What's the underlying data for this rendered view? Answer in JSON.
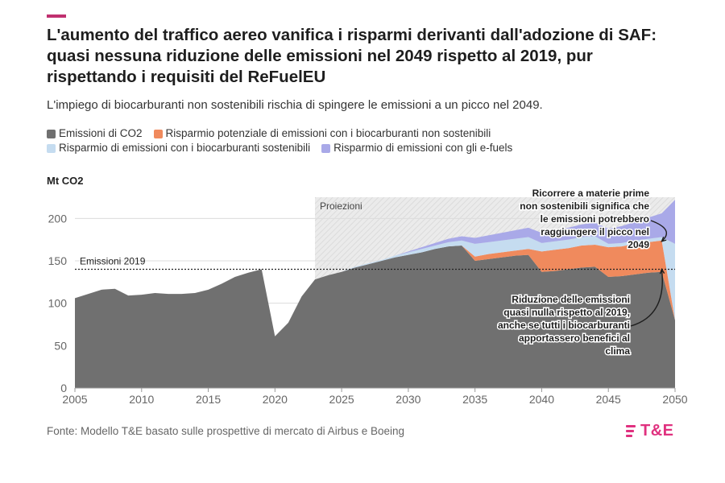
{
  "header": {
    "title": "L'aumento del traffico aereo vanifica i risparmi derivanti dall'adozione di SAF: quasi nessuna riduzione delle emissioni nel 2049 rispetto al 2019, pur rispettando i requisiti del ReFuelEU",
    "subtitle": "L'impiego di biocarburanti non sostenibili rischia di spingere le emissioni a un picco nel 2049.",
    "unit_label": "Mt CO2"
  },
  "footer": {
    "source": "Fonte: Modello T&E basato sulle prospettive di mercato di Airbus e Boeing",
    "logo_text": "T&E"
  },
  "colors": {
    "accent": "#c0306f",
    "co2": "#707070",
    "unsustainable": "#f08a5d",
    "sustainable": "#c5dcf0",
    "efuels": "#a9a9e8",
    "projection_bg": "#ebebeb",
    "logo": "#e0317f"
  },
  "chart_data": {
    "type": "area",
    "ylabel": "Mt CO2",
    "xlim": [
      2005,
      2050
    ],
    "ylim": [
      0,
      225
    ],
    "x_ticks": [
      "2005",
      "2010",
      "2015",
      "2020",
      "2025",
      "2030",
      "2035",
      "2040",
      "2045",
      "2050"
    ],
    "y_ticks": [
      "0",
      "50",
      "100",
      "150",
      "200"
    ],
    "grid": true,
    "legend_position": "top",
    "x": [
      2005,
      2006,
      2007,
      2008,
      2009,
      2010,
      2011,
      2012,
      2013,
      2014,
      2015,
      2016,
      2017,
      2018,
      2019,
      2020,
      2021,
      2022,
      2023,
      2024,
      2025,
      2026,
      2027,
      2028,
      2029,
      2030,
      2031,
      2032,
      2033,
      2034,
      2035,
      2036,
      2037,
      2038,
      2039,
      2040,
      2041,
      2042,
      2043,
      2044,
      2045,
      2046,
      2047,
      2048,
      2049,
      2050
    ],
    "series": [
      {
        "name": "Emissioni di CO2",
        "key": "co2",
        "values": [
          106,
          111,
          116,
          117,
          109,
          110,
          112,
          111,
          111,
          112,
          116,
          123,
          131,
          136,
          140,
          61,
          77,
          108,
          128,
          133,
          137,
          142,
          146,
          150,
          154,
          157,
          160,
          164,
          167,
          168,
          150,
          152,
          154,
          156,
          157,
          137,
          138,
          140,
          142,
          143,
          131,
          132,
          134,
          136,
          137,
          80
        ]
      },
      {
        "name": "Risparmio potenziale di emissioni con i biocarburanti non sostenibili",
        "key": "unsustainable",
        "values": [
          0,
          0,
          0,
          0,
          0,
          0,
          0,
          0,
          0,
          0,
          0,
          0,
          0,
          0,
          0,
          0,
          0,
          0,
          0,
          0,
          0,
          0,
          0,
          0,
          0,
          0,
          0,
          0,
          0,
          0,
          5,
          6,
          6,
          6,
          7,
          24,
          25,
          25,
          26,
          26,
          35,
          35,
          36,
          36,
          37,
          0
        ]
      },
      {
        "name": "Risparmio di emissioni con i biocarburanti sostenibili",
        "key": "sustainable",
        "values": [
          0,
          0,
          0,
          0,
          0,
          0,
          0,
          0,
          0,
          0,
          0,
          0,
          0,
          0,
          0,
          0,
          0,
          0,
          0,
          0,
          0,
          1,
          1,
          1,
          2,
          3,
          4,
          4,
          5,
          6,
          15,
          14,
          14,
          14,
          14,
          10,
          10,
          10,
          10,
          10,
          4,
          4,
          4,
          4,
          4,
          90
        ]
      },
      {
        "name": "Risparmio di emissioni con gli e-fuels",
        "key": "efuels",
        "values": [
          0,
          0,
          0,
          0,
          0,
          0,
          0,
          0,
          0,
          0,
          0,
          0,
          0,
          0,
          0,
          0,
          0,
          0,
          0,
          0,
          0,
          0,
          0,
          0,
          0,
          1,
          2,
          3,
          4,
          5,
          7,
          8,
          9,
          10,
          11,
          12,
          13,
          14,
          15,
          16,
          18,
          20,
          22,
          25,
          28,
          52
        ]
      }
    ],
    "reference_line": {
      "label": "Emissioni 2019",
      "value": 140
    },
    "projection": {
      "label": "Proiezioni",
      "from": 2023,
      "to": 2050
    },
    "annotations": [
      {
        "text": [
          "Ricorrere a materie prime",
          "non sostenibili significa che",
          "le emissioni potrebbero",
          "raggiungere il picco nel",
          "2049"
        ],
        "target_x": 2049,
        "target_y": 173
      },
      {
        "text": [
          "Riduzione delle emissioni",
          "quasi nulla rispetto al 2019,",
          "anche se tutti i biocarburanti",
          "apportassero benefici al",
          "clima"
        ],
        "target_x": 2049,
        "target_y": 140
      }
    ]
  }
}
